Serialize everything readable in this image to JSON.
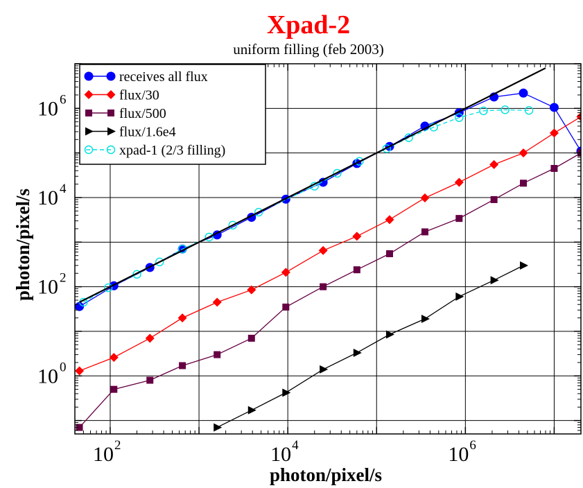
{
  "chart_data": {
    "type": "line",
    "title": "Xpad-2",
    "subtitle": "uniform filling (feb 2003)",
    "xlabel": "photon/pixel/s",
    "ylabel": "photon/pixel/s",
    "xscale": "log",
    "yscale": "log",
    "xlim": [
      40,
      20000000
    ],
    "ylim": [
      0.05,
      10000000
    ],
    "grid": true,
    "legend_position": "top-left",
    "x_ticks": [
      {
        "base": "10",
        "exp": "2",
        "value": 100
      },
      {
        "base": "10",
        "exp": "4",
        "value": 10000
      },
      {
        "base": "10",
        "exp": "6",
        "value": 1000000
      }
    ],
    "y_ticks": [
      {
        "base": "10",
        "exp": "0",
        "value": 1
      },
      {
        "base": "10",
        "exp": "2",
        "value": 100
      },
      {
        "base": "10",
        "exp": "4",
        "value": 10000
      },
      {
        "base": "10",
        "exp": "6",
        "value": 1000000
      }
    ],
    "series": [
      {
        "name": "receives all flux",
        "color": "#0000ff",
        "marker": "circle-filled",
        "line": "solid",
        "x": [
          45,
          110,
          280,
          650,
          1600,
          3900,
          9500,
          25000,
          60000,
          140000,
          350000,
          850000,
          2100000,
          4500000,
          10000000,
          20000000
        ],
        "y": [
          36,
          105,
          270,
          700,
          1450,
          3600,
          9200,
          22000,
          58000,
          140000,
          400000,
          800000,
          1800000,
          2200000,
          1050000,
          110000
        ]
      },
      {
        "name": "flux/30",
        "color": "#ff0000",
        "marker": "diamond-filled",
        "line": "solid",
        "x": [
          45,
          110,
          280,
          650,
          1600,
          3900,
          9500,
          25000,
          60000,
          140000,
          350000,
          850000,
          2100000,
          4500000,
          10000000,
          20000000
        ],
        "y": [
          1.3,
          2.6,
          7,
          20,
          45,
          85,
          210,
          650,
          1350,
          3200,
          9800,
          22000,
          55000,
          100000,
          280000,
          650000
        ]
      },
      {
        "name": "flux/500",
        "color": "#660044",
        "marker": "square-filled",
        "line": "solid",
        "x": [
          45,
          110,
          280,
          650,
          1600,
          3900,
          9500,
          25000,
          60000,
          140000,
          350000,
          850000,
          2100000,
          4500000,
          10000000,
          20000000
        ],
        "y": [
          0.07,
          0.5,
          0.8,
          1.7,
          3,
          7,
          35,
          100,
          240,
          550,
          1700,
          3400,
          9000,
          21000,
          45000,
          100000
        ]
      },
      {
        "name": "flux/1.6e4",
        "color": "#000000",
        "marker": "triangle-right-filled",
        "line": "solid",
        "x": [
          1600,
          3900,
          9500,
          25000,
          60000,
          140000,
          350000,
          850000,
          2100000,
          4500000
        ],
        "y": [
          0.07,
          0.17,
          0.42,
          1.4,
          3.3,
          8.5,
          19,
          60,
          140,
          300
        ]
      },
      {
        "name": "xpad-1 (2/3 filling)",
        "color": "#00e0e0",
        "marker": "circle-open",
        "line": "dashed",
        "x": [
          50,
          95,
          200,
          360,
          650,
          1300,
          2400,
          4700,
          20000,
          36000,
          64000,
          130000,
          230000,
          440000,
          850000,
          1600000,
          2800000,
          5200000
        ],
        "y": [
          45,
          95,
          190,
          360,
          700,
          1300,
          2400,
          4700,
          18000,
          35000,
          65000,
          125000,
          220000,
          380000,
          620000,
          880000,
          930000,
          900000
        ]
      },
      {
        "name": "",
        "color": "#000000",
        "marker": "none",
        "line": "solid",
        "x": [
          45,
          8000000
        ],
        "y": [
          45,
          8000000
        ]
      }
    ]
  }
}
